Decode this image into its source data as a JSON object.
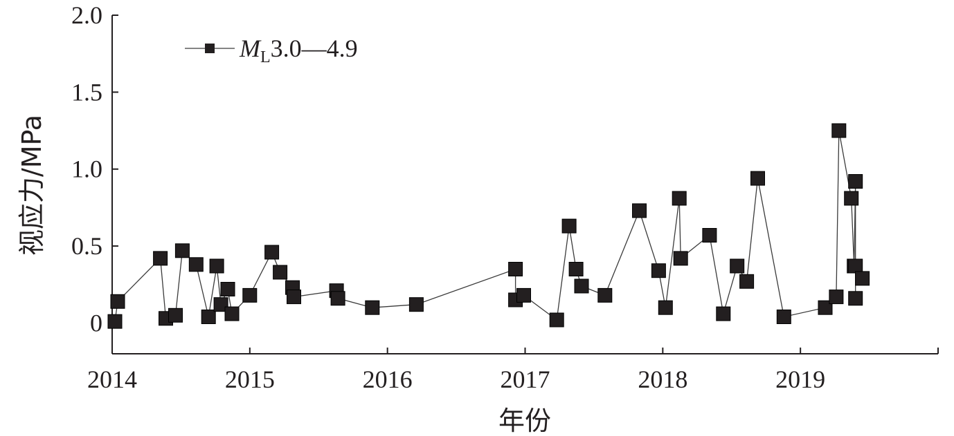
{
  "chart_data": {
    "type": "scatter",
    "title": "",
    "xlabel": "年份",
    "ylabel": "视应力/MPa",
    "xlim": [
      2014,
      2020
    ],
    "ylim": [
      -0.2,
      2.0
    ],
    "xticks": [
      2014,
      2015,
      2016,
      2017,
      2018,
      2019,
      2020
    ],
    "xtick_labels": [
      "2014",
      "2015",
      "2016",
      "2017",
      "2018",
      "2019",
      ""
    ],
    "yticks": [
      0,
      0.5,
      1.0,
      1.5,
      2.0
    ],
    "ytick_labels": [
      "0",
      "0.5",
      "1.0",
      "1.5",
      "2.0"
    ],
    "grid": false,
    "legend": {
      "position": "top-left",
      "symbol": "M",
      "subscript": "L",
      "range": "3.0—4.9"
    },
    "series": [
      {
        "name": "ML3.0—4.9",
        "marker": "square",
        "line": true,
        "color": "#231f20",
        "x": [
          2014.02,
          2014.04,
          2014.35,
          2014.39,
          2014.46,
          2014.51,
          2014.61,
          2014.7,
          2014.76,
          2014.79,
          2014.84,
          2014.87,
          2015.0,
          2015.16,
          2015.22,
          2015.31,
          2015.32,
          2015.63,
          2015.64,
          2015.89,
          2016.21,
          2016.93,
          2016.93,
          2016.99,
          2017.23,
          2017.32,
          2017.37,
          2017.41,
          2017.58,
          2017.83,
          2017.97,
          2018.02,
          2018.12,
          2018.13,
          2018.34,
          2018.44,
          2018.54,
          2018.61,
          2018.69,
          2018.88,
          2019.18,
          2019.26,
          2019.28,
          2019.37,
          2019.39,
          2019.4,
          2019.4,
          2019.4,
          2019.45
        ],
        "values": [
          0.01,
          0.14,
          0.42,
          0.03,
          0.05,
          0.47,
          0.38,
          0.04,
          0.37,
          0.12,
          0.22,
          0.06,
          0.18,
          0.46,
          0.33,
          0.23,
          0.17,
          0.21,
          0.16,
          0.1,
          0.12,
          0.35,
          0.15,
          0.18,
          0.02,
          0.63,
          0.35,
          0.24,
          0.18,
          0.73,
          0.34,
          0.1,
          0.81,
          0.42,
          0.57,
          0.06,
          0.37,
          0.27,
          0.94,
          0.04,
          0.1,
          0.17,
          1.25,
          0.81,
          0.37,
          0.92,
          0.16,
          0.37,
          0.29
        ]
      }
    ]
  }
}
